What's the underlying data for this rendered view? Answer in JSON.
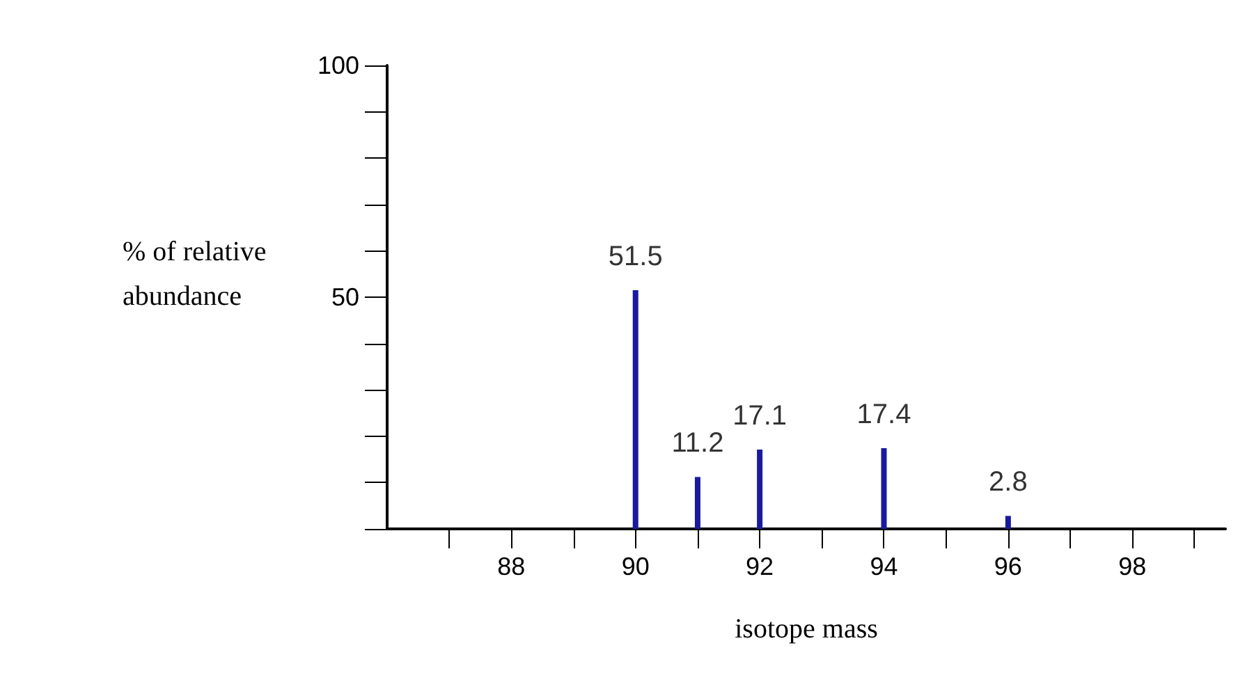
{
  "chart_data": {
    "type": "bar",
    "xlabel": "isotope mass",
    "ylabel": "% of relative abundance",
    "x": [
      90,
      91,
      92,
      94,
      96
    ],
    "values": [
      51.5,
      11.2,
      17.1,
      17.4,
      2.8
    ],
    "color": "#1a1aa0",
    "data_labels": true,
    "xlim": [
      86,
      99.5
    ],
    "xticks": [
      {
        "value": 87,
        "label": null
      },
      88,
      {
        "value": 89,
        "label": null
      },
      90,
      {
        "value": 91,
        "label": null
      },
      92,
      {
        "value": 93,
        "label": null
      },
      94,
      {
        "value": 95,
        "label": null
      },
      96,
      {
        "value": 97,
        "label": null
      },
      98,
      {
        "value": 99,
        "label": null
      }
    ],
    "ylim": [
      0,
      100
    ],
    "yticks": [
      {
        "value": 10,
        "label": null
      },
      {
        "value": 20,
        "label": null
      },
      {
        "value": 30,
        "label": null
      },
      {
        "value": 40,
        "label": null
      },
      50,
      {
        "value": 60,
        "label": null
      },
      {
        "value": 70,
        "label": null
      },
      {
        "value": 80,
        "label": null
      },
      {
        "value": 90,
        "label": null
      },
      100
    ],
    "grid": false
  }
}
